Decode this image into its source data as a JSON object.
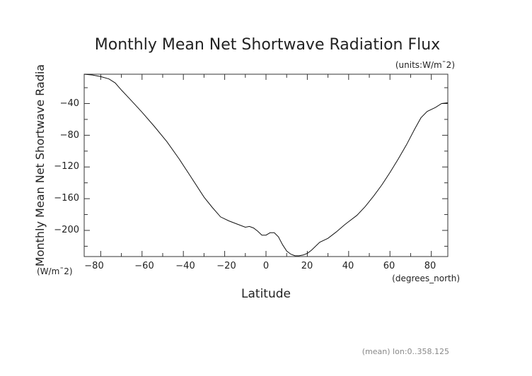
{
  "chart_data": {
    "type": "line",
    "title": "Monthly Mean Net Shortwave Radiation Flux",
    "units_note": "(units:W/m¯2)",
    "ylabel": "Monthly Mean Net Shortwave Radia",
    "ylabel_units": "(W/m¯2)",
    "xlabel": "Latitude",
    "xlabel_units": "(degrees_north)",
    "footnote": "(mean) lon:0..358.125",
    "xlim": [
      -88,
      88
    ],
    "ylim": [
      -233,
      -3
    ],
    "x_ticks": [
      -80,
      -60,
      -40,
      -20,
      0,
      20,
      40,
      60,
      80
    ],
    "y_ticks": [
      -40,
      -80,
      -120,
      -160,
      -200
    ],
    "x_tick_labels": [
      "−80",
      "−60",
      "−40",
      "−20",
      "0",
      "20",
      "40",
      "60",
      "80"
    ],
    "y_tick_labels": [
      "−40",
      "−80",
      "−120",
      "−160",
      "−200"
    ],
    "grid": false,
    "series": [
      {
        "x": [
          -88,
          -84,
          -80,
          -76,
          -73,
          -70,
          -66,
          -60,
          -54,
          -48,
          -42,
          -36,
          -30,
          -26,
          -22,
          -18,
          -14,
          -10,
          -8,
          -6,
          -4,
          -2,
          0,
          2,
          4,
          6,
          8,
          10,
          12,
          14,
          16,
          18,
          20,
          22,
          26,
          30,
          34,
          38,
          40,
          44,
          48,
          52,
          56,
          60,
          64,
          68,
          72,
          75,
          78,
          82,
          85,
          88
        ],
        "y": [
          -3,
          -4,
          -6,
          -9,
          -14,
          -23,
          -34,
          -51,
          -69,
          -88,
          -110,
          -134,
          -158,
          -171,
          -183,
          -188,
          -192,
          -196,
          -195,
          -197,
          -201,
          -206,
          -206,
          -203,
          -203,
          -208,
          -218,
          -226,
          -230,
          -232,
          -232,
          -231,
          -229,
          -225,
          -215,
          -210,
          -202,
          -193,
          -189,
          -181,
          -170,
          -157,
          -143,
          -127,
          -110,
          -92,
          -72,
          -58,
          -50,
          -45,
          -40,
          -39
        ]
      }
    ]
  }
}
